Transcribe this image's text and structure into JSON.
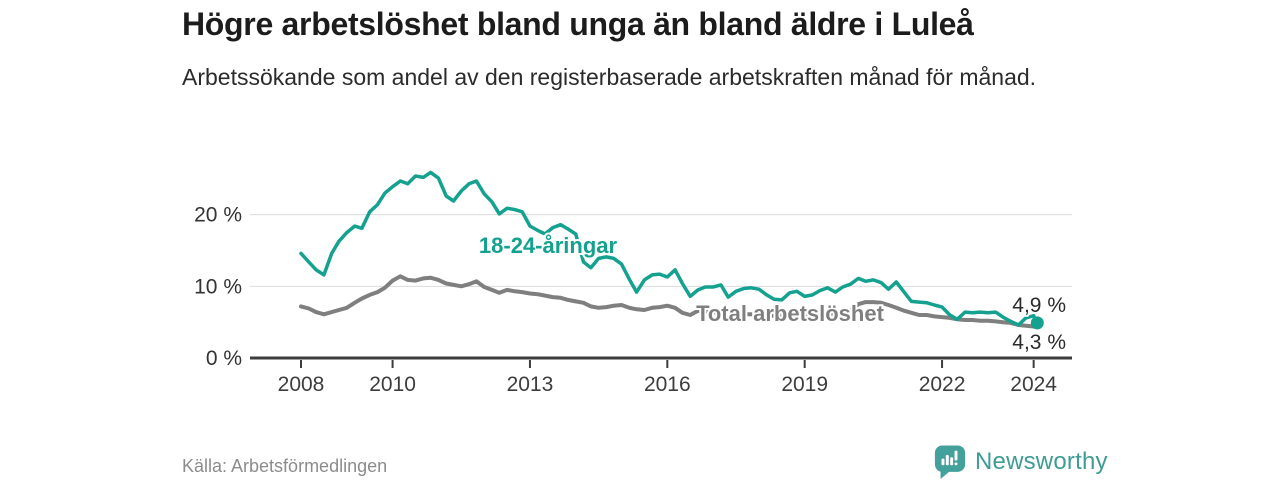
{
  "header": {
    "title": "Högre arbetslöshet bland unga än bland äldre i Luleå",
    "subtitle": "Arbetssökande som andel av den registerbaserade arbetskraften månad för månad."
  },
  "footer": {
    "source": "Källa: Arbetsförmedlingen",
    "logo_text": "Newsworthy"
  },
  "colors": {
    "youth_line": "#14a190",
    "total_line": "#7f7f7f",
    "axis": "#3d3d3d",
    "grid": "#dcdcdc",
    "logo_teal": "#44a09b"
  },
  "chart_data": {
    "type": "line",
    "title": "Högre arbetslöshet bland unga än bland äldre i Luleå",
    "subtitle": "Arbetssökande som andel av den registerbaserade arbetskraften månad för månad.",
    "xlabel": "",
    "ylabel": "",
    "unit": "%",
    "grid": "horizontal",
    "legend": "inline-labels",
    "x_ticks": [
      2008,
      2010,
      2013,
      2016,
      2019,
      2022,
      2024
    ],
    "y_ticks": [
      {
        "value": 0,
        "label": "0 %"
      },
      {
        "value": 10,
        "label": "10 %"
      },
      {
        "value": 20,
        "label": "20 %"
      }
    ],
    "xlim": [
      2006.9,
      2024.85
    ],
    "ylim": [
      0,
      27.5
    ],
    "series": [
      {
        "name": "18-24-åringar",
        "color": "#14a190",
        "line_width": 3.5,
        "end_dot": true,
        "end_label": "4,9 %",
        "end_value": 4.9,
        "points": [
          [
            2008.0,
            14.6
          ],
          [
            2008.17,
            13.4
          ],
          [
            2008.33,
            12.3
          ],
          [
            2008.5,
            11.6
          ],
          [
            2008.67,
            14.6
          ],
          [
            2008.83,
            16.3
          ],
          [
            2009.0,
            17.5
          ],
          [
            2009.17,
            18.4
          ],
          [
            2009.33,
            18.1
          ],
          [
            2009.5,
            20.4
          ],
          [
            2009.67,
            21.4
          ],
          [
            2009.83,
            23.0
          ],
          [
            2010.0,
            23.9
          ],
          [
            2010.17,
            24.7
          ],
          [
            2010.33,
            24.3
          ],
          [
            2010.5,
            25.4
          ],
          [
            2010.67,
            25.2
          ],
          [
            2010.83,
            25.9
          ],
          [
            2011.0,
            25.1
          ],
          [
            2011.17,
            22.6
          ],
          [
            2011.33,
            21.9
          ],
          [
            2011.5,
            23.3
          ],
          [
            2011.67,
            24.3
          ],
          [
            2011.83,
            24.7
          ],
          [
            2012.0,
            22.9
          ],
          [
            2012.17,
            21.8
          ],
          [
            2012.33,
            20.1
          ],
          [
            2012.5,
            20.9
          ],
          [
            2012.67,
            20.7
          ],
          [
            2012.83,
            20.4
          ],
          [
            2013.0,
            18.4
          ],
          [
            2013.17,
            17.8
          ],
          [
            2013.33,
            17.3
          ],
          [
            2013.5,
            18.2
          ],
          [
            2013.67,
            18.6
          ],
          [
            2013.83,
            18.0
          ],
          [
            2014.0,
            17.3
          ],
          [
            2014.17,
            13.4
          ],
          [
            2014.33,
            12.6
          ],
          [
            2014.5,
            13.9
          ],
          [
            2014.67,
            14.1
          ],
          [
            2014.83,
            13.9
          ],
          [
            2015.0,
            13.1
          ],
          [
            2015.17,
            11.0
          ],
          [
            2015.33,
            9.2
          ],
          [
            2015.5,
            10.9
          ],
          [
            2015.67,
            11.6
          ],
          [
            2015.83,
            11.7
          ],
          [
            2016.0,
            11.3
          ],
          [
            2016.17,
            12.3
          ],
          [
            2016.33,
            10.4
          ],
          [
            2016.5,
            8.6
          ],
          [
            2016.67,
            9.5
          ],
          [
            2016.83,
            9.9
          ],
          [
            2017.0,
            9.9
          ],
          [
            2017.17,
            10.2
          ],
          [
            2017.33,
            8.5
          ],
          [
            2017.5,
            9.3
          ],
          [
            2017.67,
            9.7
          ],
          [
            2017.83,
            9.8
          ],
          [
            2018.0,
            9.6
          ],
          [
            2018.17,
            8.8
          ],
          [
            2018.33,
            8.2
          ],
          [
            2018.5,
            8.1
          ],
          [
            2018.67,
            9.1
          ],
          [
            2018.83,
            9.3
          ],
          [
            2019.0,
            8.6
          ],
          [
            2019.17,
            8.8
          ],
          [
            2019.33,
            9.4
          ],
          [
            2019.5,
            9.8
          ],
          [
            2019.67,
            9.2
          ],
          [
            2019.83,
            9.9
          ],
          [
            2020.0,
            10.3
          ],
          [
            2020.17,
            11.1
          ],
          [
            2020.33,
            10.7
          ],
          [
            2020.5,
            10.9
          ],
          [
            2020.67,
            10.5
          ],
          [
            2020.83,
            9.6
          ],
          [
            2021.0,
            10.6
          ],
          [
            2021.17,
            9.2
          ],
          [
            2021.33,
            7.9
          ],
          [
            2021.5,
            7.8
          ],
          [
            2021.67,
            7.7
          ],
          [
            2021.83,
            7.4
          ],
          [
            2022.0,
            7.1
          ],
          [
            2022.17,
            6.0
          ],
          [
            2022.33,
            5.4
          ],
          [
            2022.5,
            6.4
          ],
          [
            2022.67,
            6.3
          ],
          [
            2022.83,
            6.4
          ],
          [
            2023.0,
            6.3
          ],
          [
            2023.17,
            6.4
          ],
          [
            2023.33,
            5.7
          ],
          [
            2023.5,
            5.1
          ],
          [
            2023.67,
            4.6
          ],
          [
            2023.83,
            5.6
          ],
          [
            2024.0,
            5.9
          ],
          [
            2024.08,
            4.9
          ]
        ]
      },
      {
        "name": "Total arbetslöshet",
        "color": "#7f7f7f",
        "line_width": 4,
        "end_dot": false,
        "end_label": "4,3 %",
        "end_value": 4.3,
        "points": [
          [
            2008.0,
            7.2
          ],
          [
            2008.17,
            6.9
          ],
          [
            2008.33,
            6.4
          ],
          [
            2008.5,
            6.1
          ],
          [
            2008.67,
            6.4
          ],
          [
            2008.83,
            6.7
          ],
          [
            2009.0,
            7.0
          ],
          [
            2009.17,
            7.7
          ],
          [
            2009.33,
            8.3
          ],
          [
            2009.5,
            8.8
          ],
          [
            2009.67,
            9.2
          ],
          [
            2009.83,
            9.8
          ],
          [
            2010.0,
            10.8
          ],
          [
            2010.17,
            11.4
          ],
          [
            2010.33,
            10.9
          ],
          [
            2010.5,
            10.8
          ],
          [
            2010.67,
            11.1
          ],
          [
            2010.83,
            11.2
          ],
          [
            2011.0,
            10.9
          ],
          [
            2011.17,
            10.4
          ],
          [
            2011.33,
            10.2
          ],
          [
            2011.5,
            10.0
          ],
          [
            2011.67,
            10.3
          ],
          [
            2011.83,
            10.7
          ],
          [
            2012.0,
            9.9
          ],
          [
            2012.17,
            9.5
          ],
          [
            2012.33,
            9.1
          ],
          [
            2012.5,
            9.5
          ],
          [
            2012.67,
            9.3
          ],
          [
            2012.83,
            9.2
          ],
          [
            2013.0,
            9.0
          ],
          [
            2013.17,
            8.9
          ],
          [
            2013.33,
            8.7
          ],
          [
            2013.5,
            8.5
          ],
          [
            2013.67,
            8.4
          ],
          [
            2013.83,
            8.1
          ],
          [
            2014.0,
            7.9
          ],
          [
            2014.17,
            7.7
          ],
          [
            2014.33,
            7.2
          ],
          [
            2014.5,
            7.0
          ],
          [
            2014.67,
            7.1
          ],
          [
            2014.83,
            7.3
          ],
          [
            2015.0,
            7.4
          ],
          [
            2015.17,
            7.0
          ],
          [
            2015.33,
            6.8
          ],
          [
            2015.5,
            6.7
          ],
          [
            2015.67,
            7.0
          ],
          [
            2015.83,
            7.1
          ],
          [
            2016.0,
            7.3
          ],
          [
            2016.17,
            7.0
          ],
          [
            2016.33,
            6.3
          ],
          [
            2016.5,
            6.0
          ],
          [
            2016.67,
            6.6
          ],
          [
            2016.83,
            6.5
          ],
          [
            2017.0,
            6.4
          ],
          [
            2017.17,
            6.3
          ],
          [
            2017.33,
            6.2
          ],
          [
            2017.5,
            6.2
          ],
          [
            2017.67,
            6.1
          ],
          [
            2017.83,
            6.1
          ],
          [
            2018.0,
            6.0
          ],
          [
            2018.17,
            5.9
          ],
          [
            2018.33,
            5.9
          ],
          [
            2018.5,
            5.9
          ],
          [
            2018.67,
            6.0
          ],
          [
            2018.83,
            6.0
          ],
          [
            2019.0,
            6.0
          ],
          [
            2019.17,
            6.1
          ],
          [
            2019.33,
            6.1
          ],
          [
            2019.5,
            6.2
          ],
          [
            2019.67,
            6.2
          ],
          [
            2019.83,
            6.3
          ],
          [
            2020.0,
            6.6
          ],
          [
            2020.17,
            7.5
          ],
          [
            2020.33,
            7.8
          ],
          [
            2020.5,
            7.8
          ],
          [
            2020.67,
            7.7
          ],
          [
            2020.83,
            7.4
          ],
          [
            2021.0,
            7.0
          ],
          [
            2021.17,
            6.6
          ],
          [
            2021.33,
            6.3
          ],
          [
            2021.5,
            6.0
          ],
          [
            2021.67,
            6.0
          ],
          [
            2021.83,
            5.8
          ],
          [
            2022.0,
            5.7
          ],
          [
            2022.17,
            5.6
          ],
          [
            2022.33,
            5.4
          ],
          [
            2022.5,
            5.3
          ],
          [
            2022.67,
            5.3
          ],
          [
            2022.83,
            5.2
          ],
          [
            2023.0,
            5.2
          ],
          [
            2023.17,
            5.1
          ],
          [
            2023.33,
            5.0
          ],
          [
            2023.5,
            4.9
          ],
          [
            2023.67,
            4.6
          ],
          [
            2023.83,
            4.5
          ],
          [
            2024.0,
            4.4
          ],
          [
            2024.08,
            4.3
          ]
        ]
      }
    ]
  }
}
